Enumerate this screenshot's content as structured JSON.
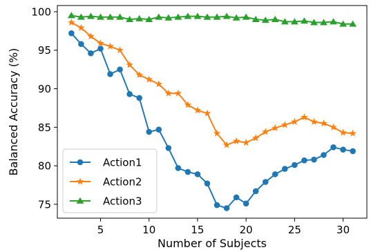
{
  "chart_data": {
    "type": "line",
    "title": "",
    "xlabel": "Number of Subjects",
    "ylabel": "Balanced Accuracy (%)",
    "xlim": [
      0.55,
      32.45
    ],
    "ylim": [
      73.2,
      100.8
    ],
    "xticks": [
      5,
      10,
      15,
      20,
      25,
      30
    ],
    "yticks": [
      75,
      80,
      85,
      90,
      95,
      100
    ],
    "grid": false,
    "legend_position": "lower-left",
    "x": [
      2,
      3,
      4,
      5,
      6,
      7,
      8,
      9,
      10,
      11,
      12,
      13,
      14,
      15,
      16,
      17,
      18,
      19,
      20,
      21,
      22,
      23,
      24,
      25,
      26,
      27,
      28,
      29,
      30,
      31
    ],
    "series": [
      {
        "name": "Action1",
        "color": "#1f77b4",
        "marker": "circle",
        "values": [
          97.2,
          95.8,
          94.6,
          95.2,
          91.9,
          92.5,
          89.3,
          88.8,
          84.4,
          84.7,
          82.3,
          79.7,
          79.2,
          78.9,
          77.7,
          74.9,
          74.5,
          75.9,
          75.1,
          76.7,
          77.9,
          78.9,
          79.6,
          80.1,
          80.7,
          80.8,
          81.4,
          82.4,
          82.1,
          81.9
        ]
      },
      {
        "name": "Action2",
        "color": "#ff7f0e",
        "marker": "star",
        "values": [
          98.6,
          97.9,
          96.8,
          95.9,
          95.5,
          95.0,
          93.1,
          91.8,
          91.2,
          90.6,
          89.4,
          89.4,
          87.9,
          87.2,
          86.8,
          84.2,
          82.7,
          83.2,
          83.0,
          83.6,
          84.4,
          84.9,
          85.3,
          85.7,
          86.3,
          85.7,
          85.5,
          85.0,
          84.3,
          84.2
        ]
      },
      {
        "name": "Action3",
        "color": "#2ca02c",
        "marker": "triangle-up",
        "values": [
          99.5,
          99.3,
          99.4,
          99.3,
          99.3,
          99.3,
          99.0,
          99.1,
          99.0,
          99.3,
          99.2,
          99.3,
          99.4,
          99.4,
          99.3,
          99.3,
          99.4,
          99.2,
          99.3,
          99.0,
          98.9,
          99.0,
          98.7,
          98.7,
          98.8,
          98.6,
          98.6,
          98.7,
          98.4,
          98.4
        ]
      }
    ]
  }
}
